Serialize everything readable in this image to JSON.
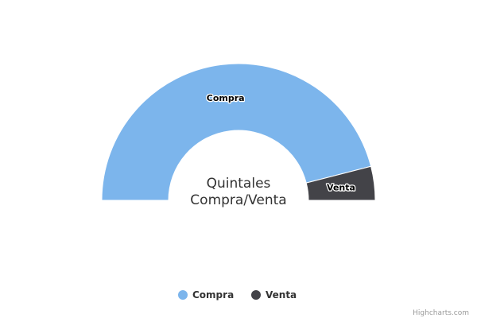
{
  "chart_data": {
    "type": "pie",
    "variant": "semi-donut",
    "title": "Quintales Compra/Venta",
    "title_lines": [
      "Quintales",
      "Compra/Venta"
    ],
    "series": [
      {
        "name": "Compra",
        "value": 92,
        "color": "#7cb5ec"
      },
      {
        "name": "Venta",
        "value": 8,
        "color": "#434348"
      }
    ],
    "legend": {
      "position": "bottom-center"
    },
    "credits": "Highcharts.com"
  }
}
